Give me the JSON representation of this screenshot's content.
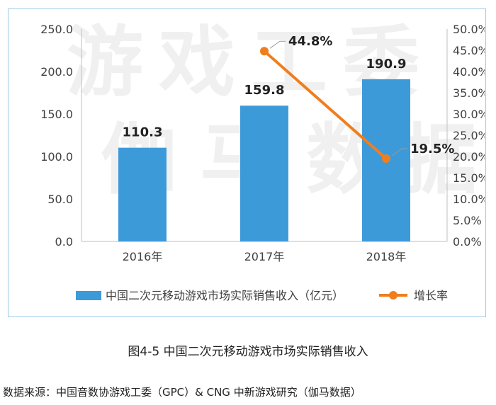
{
  "chart_data": {
    "type": "bar",
    "categories": [
      "2016年",
      "2017年",
      "2018年"
    ],
    "series": [
      {
        "name": "中国二次元移动游戏市场实际销售收入（亿元）",
        "type": "bar",
        "axis": "left",
        "color": "#3d9ad9",
        "values": [
          110.3,
          159.8,
          190.9
        ],
        "labels": [
          "110.3",
          "159.8",
          "190.9"
        ]
      },
      {
        "name": "增长率",
        "type": "line",
        "axis": "right",
        "color": "#f07e1d",
        "values": [
          null,
          44.8,
          19.5
        ],
        "labels": [
          null,
          "44.8%",
          "19.5%"
        ]
      }
    ],
    "y_left": {
      "ylim": [
        0,
        250
      ],
      "ticks": [
        "0.0",
        "50.0",
        "100.0",
        "150.0",
        "200.0",
        "250.0"
      ]
    },
    "y_right": {
      "ylim": [
        0,
        50
      ],
      "ticks": [
        "0.0%",
        "5.0%",
        "10.0%",
        "15.0%",
        "20.0%",
        "25.0%",
        "30.0%",
        "35.0%",
        "40.0%",
        "45.0%",
        "50.0%"
      ]
    },
    "grid": false,
    "legend_position": "bottom",
    "watermark": [
      "游",
      "戏",
      "工",
      "委",
      "伽",
      "马",
      "数",
      "据"
    ]
  },
  "caption": "图4-5  中国二次元移动游戏市场实际销售收入",
  "source": "数据来源：中国音数协游戏工委（GPC）& CNG 中新游戏研究（伽马数据）"
}
